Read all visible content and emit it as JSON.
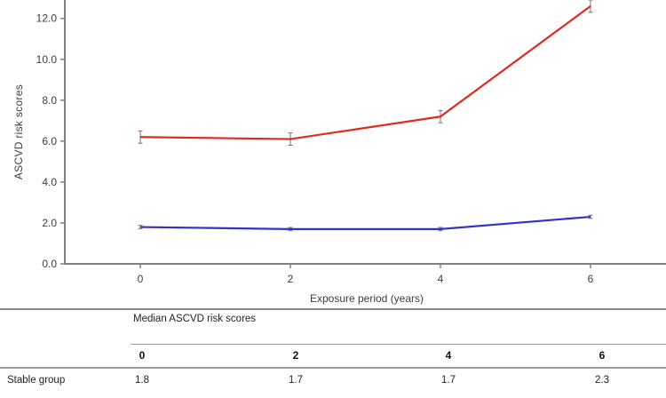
{
  "chart_data": {
    "type": "line",
    "title": "",
    "x": [
      0,
      2,
      4,
      6
    ],
    "x_tick_labels": [
      "0",
      "2",
      "4",
      "6"
    ],
    "y_tick_labels": [
      "0.0",
      "2.0",
      "4.0",
      "6.0",
      "8.0",
      "10.0",
      "12.0"
    ],
    "xlabel": "Exposure period (years)",
    "ylabel": "ASCVD risk scores",
    "ylim": [
      0,
      12.9
    ],
    "grid": false,
    "legend": "none",
    "series": [
      {
        "name": "red-line",
        "color": "#df2b1f",
        "values": [
          6.2,
          6.1,
          7.2,
          12.6
        ],
        "error": 0.3
      },
      {
        "name": "blue-line",
        "color": "#3232c8",
        "values": [
          1.8,
          1.7,
          1.7,
          2.3
        ],
        "error": 0.08
      }
    ],
    "axis_color": "#7f7f7f",
    "label_color": "#3d3d3d",
    "error_bar_color": "#707070"
  },
  "table": {
    "header": "Median ASCVD risk scores",
    "columns": [
      "0",
      "2",
      "4",
      "6"
    ],
    "rows": [
      {
        "label": "Stable group",
        "values": [
          "1.8",
          "1.7",
          "1.7",
          "2.3"
        ]
      }
    ]
  }
}
